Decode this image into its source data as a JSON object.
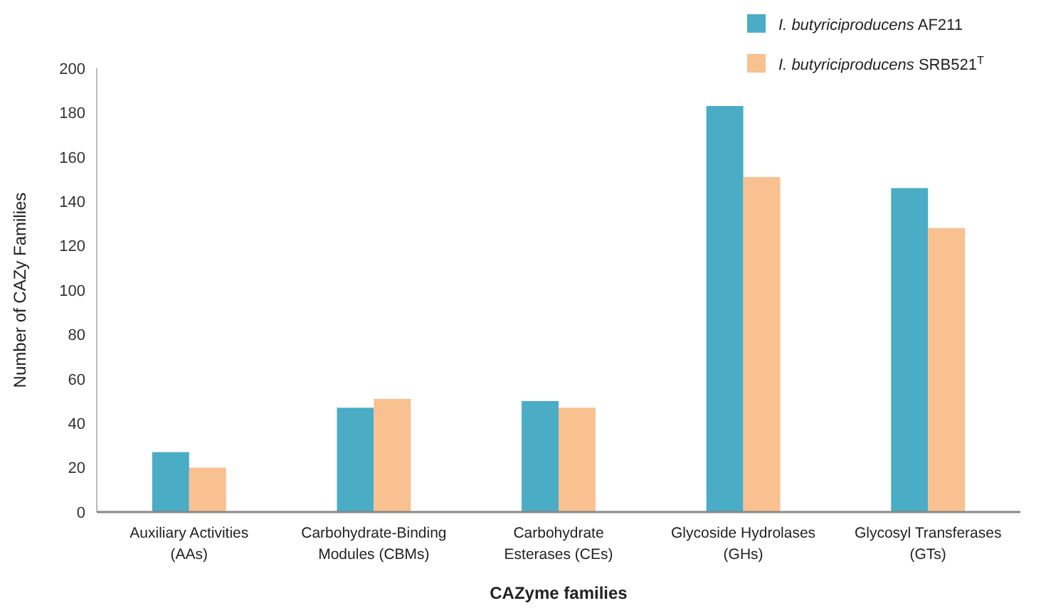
{
  "chart_data": {
    "type": "bar",
    "xlabel": "CAZyme families",
    "ylabel": "Number of CAZy Families",
    "categories": [
      "Auxiliary Activities (AAs)",
      "Carbohydrate-Binding Modules (CBMs)",
      "Carbohydrate Esterases (CEs)",
      "Glycoside Hydrolases (GHs)",
      "Glycosyl Transferases (GTs)"
    ],
    "series": [
      {
        "name": "I. butyriciproducens AF211",
        "color": "#4bacc6",
        "values": [
          27,
          47,
          50,
          183,
          146
        ]
      },
      {
        "name": "I. butyriciproducens SRB521$^{T}$",
        "color": "#f9c090",
        "values": [
          20,
          51,
          47,
          151,
          128
        ]
      }
    ],
    "ylim": [
      0,
      200
    ],
    "yticks": [
      0,
      20,
      40,
      60,
      80,
      100,
      120,
      140,
      160,
      180,
      200
    ],
    "grid": false,
    "legend": "top right"
  }
}
